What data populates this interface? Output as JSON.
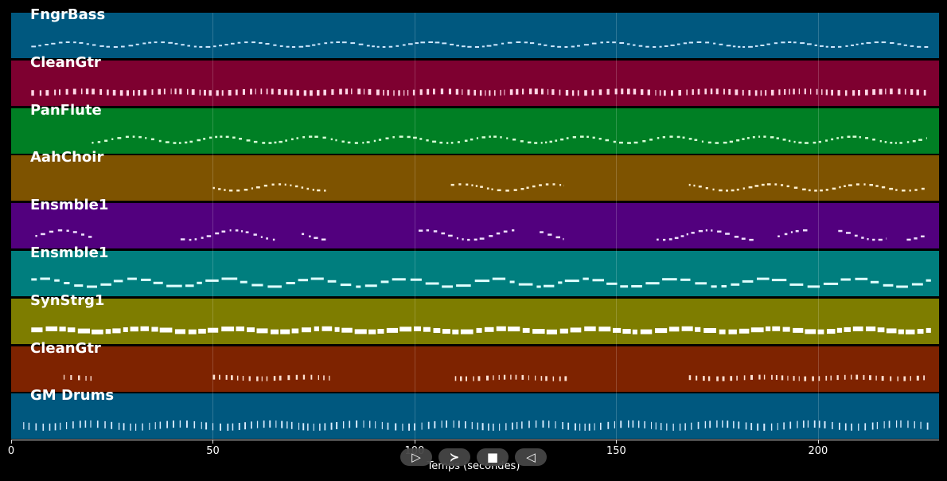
{
  "tracks": [
    {
      "name": "FngrBass",
      "color": "#00587f"
    },
    {
      "name": "CleanGtr",
      "color": "#7e0030"
    },
    {
      "name": "PanFlute",
      "color": "#007f24"
    },
    {
      "name": "AahChoir",
      "color": "#7e5300"
    },
    {
      "name": "Ensmble1",
      "color": "#52007e"
    },
    {
      "name": "Ensmble1",
      "color": "#007e7e"
    },
    {
      "name": "SynStrg1",
      "color": "#7e7d00"
    },
    {
      "name": "CleanGtr",
      "color": "#7e2300"
    },
    {
      "name": "GM Drums",
      "color": "#00587f"
    }
  ],
  "x_axis": {
    "ticks": [
      0,
      50,
      100,
      150,
      200
    ],
    "tick_labels": [
      "0",
      "50",
      "100",
      "150",
      "200"
    ],
    "max": 230,
    "label": "Temps (secondes)"
  },
  "controls": {
    "play_icon": "▷",
    "forward_icon": "≻",
    "stop_icon": "■",
    "back_icon": "◁"
  }
}
